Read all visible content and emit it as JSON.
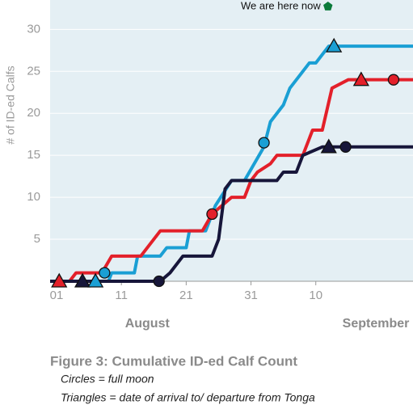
{
  "chart_data": {
    "type": "line",
    "annotation": "We are here now",
    "annotation_x": 43,
    "annotation_color": "#0a7a3a",
    "y_label": "# of ID-ed Calfs",
    "month_labels": [
      {
        "value": 15,
        "label": "August"
      },
      {
        "value": 51,
        "label": "September"
      }
    ],
    "xlim": [
      0,
      56
    ],
    "ylim": [
      0,
      33.5
    ],
    "xticks": [
      {
        "value": 1,
        "label": "01"
      },
      11,
      21,
      31,
      {
        "value": 41,
        "label": "10"
      }
    ],
    "yticks": [
      5,
      10,
      15,
      20,
      25,
      30
    ],
    "series": [
      {
        "color": "#1a9fd4",
        "x": [
          0,
          9,
          9.5,
          13,
          13.5,
          17,
          18,
          21,
          21.5,
          24,
          25.5,
          28,
          30,
          33,
          34,
          36,
          37,
          40,
          41,
          43,
          56
        ],
        "values": [
          0,
          0,
          1,
          1,
          3,
          3,
          4,
          4,
          6,
          6,
          9,
          12,
          12,
          16,
          19,
          21,
          23,
          26,
          26,
          28,
          28
        ]
      },
      {
        "color": "#e3202a",
        "x": [
          0,
          3,
          4,
          8,
          9.5,
          14,
          15,
          17,
          23.5,
          25,
          28,
          30,
          31,
          32,
          34,
          35,
          39,
          40.5,
          42,
          43.5,
          46,
          56
        ],
        "values": [
          0,
          0,
          1,
          1,
          3,
          3,
          4,
          6,
          6,
          8,
          10,
          10,
          12,
          13,
          14,
          15,
          15,
          18,
          18,
          23,
          24,
          24
        ]
      },
      {
        "color": "#17163a",
        "x": [
          0,
          17,
          18.5,
          20.5,
          25,
          26,
          27,
          28,
          35,
          36,
          38,
          39,
          42,
          56
        ],
        "values": [
          0,
          0,
          1,
          3,
          3,
          5,
          11,
          12,
          12,
          13,
          13,
          15,
          16,
          16
        ]
      }
    ],
    "markers": [
      {
        "shape": "triangle",
        "color": "#e3202a",
        "x": 1.4,
        "y": 0
      },
      {
        "shape": "triangle",
        "color": "#17163a",
        "x": 5,
        "y": 0
      },
      {
        "shape": "triangle",
        "color": "#1a9fd4",
        "x": 7,
        "y": 0
      },
      {
        "shape": "circle",
        "color": "#1a9fd4",
        "x": 8.4,
        "y": 1
      },
      {
        "shape": "circle",
        "color": "#17163a",
        "x": 16.8,
        "y": 0
      },
      {
        "shape": "circle",
        "color": "#e3202a",
        "x": 25,
        "y": 8
      },
      {
        "shape": "circle",
        "color": "#1a9fd4",
        "x": 33,
        "y": 16.5
      },
      {
        "shape": "triangle",
        "color": "#17163a",
        "x": 43,
        "y": 16
      },
      {
        "shape": "circle",
        "color": "#17163a",
        "x": 45.6,
        "y": 16
      },
      {
        "shape": "triangle",
        "color": "#1a9fd4",
        "x": 43.8,
        "y": 28
      },
      {
        "shape": "triangle",
        "color": "#e3202a",
        "x": 48,
        "y": 24
      },
      {
        "shape": "circle",
        "color": "#e3202a",
        "x": 53,
        "y": 24
      }
    ]
  },
  "caption": {
    "title": "Figure 3: Cumulative ID-ed Calf Count",
    "lines": [
      "Circles = full moon",
      "Triangles = date of arrival to/ departure from Tonga"
    ]
  }
}
